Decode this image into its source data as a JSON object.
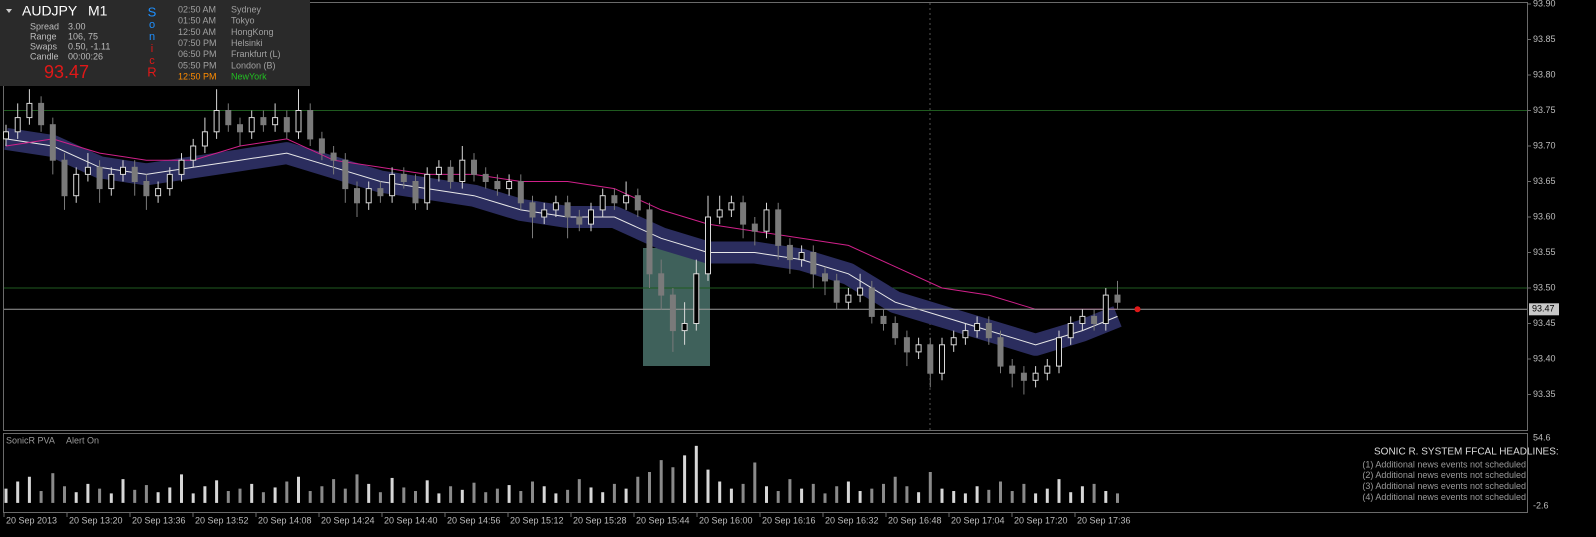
{
  "chart_data": {
    "type": "candlestick",
    "ylim": [
      93.3,
      93.9
    ],
    "yticks": [
      {
        "value": 93.9,
        "label": "93.90"
      },
      93.85,
      {
        "value": 93.8,
        "label": "93.80"
      },
      93.75,
      {
        "value": 93.7,
        "label": "93.70"
      },
      93.65,
      {
        "value": 93.6,
        "label": "93.60"
      },
      93.55,
      {
        "value": 93.5,
        "label": "93.50"
      },
      93.45,
      {
        "value": 93.4,
        "label": "93.40"
      },
      93.35
    ],
    "hlines": [
      93.75,
      93.5
    ],
    "hline_color": "#1f5a1f",
    "current_price": 93.47,
    "up_color": "#d8d8d8",
    "down_color": "#7a7a7a",
    "ohlc": [
      [
        93.71,
        93.73,
        93.7,
        93.72
      ],
      [
        93.72,
        93.76,
        93.71,
        93.74
      ],
      [
        93.74,
        93.78,
        93.73,
        93.76
      ],
      [
        93.76,
        93.77,
        93.72,
        93.73
      ],
      [
        93.73,
        93.74,
        93.66,
        93.68
      ],
      [
        93.68,
        93.69,
        93.61,
        93.63
      ],
      [
        93.63,
        93.67,
        93.62,
        93.66
      ],
      [
        93.66,
        93.69,
        93.65,
        93.67
      ],
      [
        93.67,
        93.68,
        93.62,
        93.64
      ],
      [
        93.64,
        93.67,
        93.63,
        93.66
      ],
      [
        93.66,
        93.68,
        93.65,
        93.67
      ],
      [
        93.67,
        93.68,
        93.63,
        93.65
      ],
      [
        93.65,
        93.66,
        93.61,
        93.63
      ],
      [
        93.63,
        93.65,
        93.62,
        93.64
      ],
      [
        93.64,
        93.67,
        93.63,
        93.66
      ],
      [
        93.66,
        93.69,
        93.65,
        93.68
      ],
      [
        93.68,
        93.71,
        93.67,
        93.7
      ],
      [
        93.7,
        93.74,
        93.69,
        93.72
      ],
      [
        93.72,
        93.78,
        93.71,
        93.75
      ],
      [
        93.75,
        93.76,
        93.72,
        93.73
      ],
      [
        93.73,
        93.74,
        93.7,
        93.72
      ],
      [
        93.72,
        93.75,
        93.71,
        93.74
      ],
      [
        93.74,
        93.75,
        93.72,
        93.73
      ],
      [
        93.73,
        93.76,
        93.72,
        93.74
      ],
      [
        93.74,
        93.75,
        93.71,
        93.72
      ],
      [
        93.72,
        93.78,
        93.71,
        93.75
      ],
      [
        93.75,
        93.76,
        93.7,
        93.71
      ],
      [
        93.71,
        93.72,
        93.68,
        93.69
      ],
      [
        93.69,
        93.7,
        93.66,
        93.68
      ],
      [
        93.68,
        93.69,
        93.62,
        93.64
      ],
      [
        93.64,
        93.65,
        93.6,
        93.62
      ],
      [
        93.62,
        93.65,
        93.61,
        93.64
      ],
      [
        93.64,
        93.65,
        93.62,
        93.63
      ],
      [
        93.63,
        93.67,
        93.62,
        93.66
      ],
      [
        93.66,
        93.67,
        93.64,
        93.65
      ],
      [
        93.65,
        93.66,
        93.61,
        93.62
      ],
      [
        93.62,
        93.67,
        93.61,
        93.66
      ],
      [
        93.66,
        93.68,
        93.65,
        93.67
      ],
      [
        93.67,
        93.68,
        93.64,
        93.65
      ],
      [
        93.65,
        93.7,
        93.64,
        93.68
      ],
      [
        93.68,
        93.69,
        93.65,
        93.66
      ],
      [
        93.66,
        93.67,
        93.64,
        93.65
      ],
      [
        93.65,
        93.66,
        93.63,
        93.64
      ],
      [
        93.64,
        93.66,
        93.63,
        93.65
      ],
      [
        93.65,
        93.66,
        93.61,
        93.62
      ],
      [
        93.62,
        93.63,
        93.57,
        93.6
      ],
      [
        93.6,
        93.62,
        93.59,
        93.61
      ],
      [
        93.61,
        93.63,
        93.6,
        93.62
      ],
      [
        93.62,
        93.63,
        93.57,
        93.6
      ],
      [
        93.6,
        93.61,
        93.58,
        93.59
      ],
      [
        93.59,
        93.62,
        93.58,
        93.61
      ],
      [
        93.61,
        93.64,
        93.6,
        93.63
      ],
      [
        93.63,
        93.64,
        93.61,
        93.62
      ],
      [
        93.62,
        93.65,
        93.61,
        93.63
      ],
      [
        93.63,
        93.64,
        93.6,
        93.61
      ],
      [
        93.61,
        93.62,
        93.5,
        93.52
      ],
      [
        93.52,
        93.54,
        93.47,
        93.49
      ],
      [
        93.49,
        93.5,
        93.41,
        93.44
      ],
      [
        93.44,
        93.48,
        93.42,
        93.45
      ],
      [
        93.45,
        93.54,
        93.44,
        93.52
      ],
      [
        93.52,
        93.63,
        93.51,
        93.6
      ],
      [
        93.6,
        93.63,
        93.59,
        93.61
      ],
      [
        93.61,
        93.63,
        93.6,
        93.62
      ],
      [
        93.62,
        93.63,
        93.57,
        93.59
      ],
      [
        93.59,
        93.6,
        93.56,
        93.58
      ],
      [
        93.58,
        93.62,
        93.57,
        93.61
      ],
      [
        93.61,
        93.62,
        93.54,
        93.56
      ],
      [
        93.56,
        93.57,
        93.52,
        93.54
      ],
      [
        93.54,
        93.56,
        93.53,
        93.55
      ],
      [
        93.55,
        93.56,
        93.5,
        93.52
      ],
      [
        93.52,
        93.53,
        93.49,
        93.51
      ],
      [
        93.51,
        93.52,
        93.47,
        93.48
      ],
      [
        93.48,
        93.5,
        93.47,
        93.49
      ],
      [
        93.49,
        93.52,
        93.48,
        93.5
      ],
      [
        93.5,
        93.51,
        93.45,
        93.46
      ],
      [
        93.46,
        93.47,
        93.44,
        93.45
      ],
      [
        93.45,
        93.46,
        93.42,
        93.43
      ],
      [
        93.43,
        93.44,
        93.39,
        93.41
      ],
      [
        93.41,
        93.43,
        93.4,
        93.42
      ],
      [
        93.42,
        93.43,
        93.36,
        93.38
      ],
      [
        93.38,
        93.43,
        93.37,
        93.42
      ],
      [
        93.42,
        93.44,
        93.41,
        93.43
      ],
      [
        93.43,
        93.45,
        93.42,
        93.44
      ],
      [
        93.44,
        93.46,
        93.43,
        93.45
      ],
      [
        93.45,
        93.46,
        93.42,
        93.43
      ],
      [
        93.43,
        93.44,
        93.38,
        93.39
      ],
      [
        93.39,
        93.4,
        93.36,
        93.38
      ],
      [
        93.38,
        93.39,
        93.35,
        93.37
      ],
      [
        93.37,
        93.39,
        93.36,
        93.38
      ],
      [
        93.38,
        93.4,
        93.37,
        93.39
      ],
      [
        93.39,
        93.44,
        93.38,
        93.43
      ],
      [
        93.43,
        93.46,
        93.42,
        93.45
      ],
      [
        93.45,
        93.47,
        93.44,
        93.46
      ],
      [
        93.46,
        93.47,
        93.44,
        93.45
      ],
      [
        93.45,
        93.5,
        93.44,
        93.49
      ],
      [
        93.49,
        93.51,
        93.47,
        93.48
      ]
    ],
    "indicator_x": [
      0,
      4,
      8,
      12,
      16,
      20,
      24,
      28,
      32,
      36,
      40,
      44,
      48,
      52,
      56,
      60,
      64,
      68,
      72,
      76,
      80,
      84,
      88,
      92,
      95
    ],
    "ema": {
      "color": "#e8e8e8",
      "band_color": "#2b2d5e",
      "values": [
        93.71,
        93.7,
        93.67,
        93.66,
        93.67,
        93.68,
        93.69,
        93.67,
        93.65,
        93.64,
        93.63,
        93.61,
        93.6,
        93.6,
        93.57,
        93.55,
        93.55,
        93.54,
        93.52,
        93.48,
        93.46,
        93.44,
        93.42,
        93.44,
        93.46
      ]
    },
    "ma": {
      "color": "#d0208a",
      "values": [
        93.7,
        93.71,
        93.69,
        93.68,
        93.68,
        93.7,
        93.71,
        93.68,
        93.67,
        93.66,
        93.66,
        93.65,
        93.65,
        93.64,
        93.61,
        93.59,
        93.58,
        93.57,
        93.56,
        93.53,
        93.5,
        93.49,
        93.47,
        93.47,
        93.47
      ]
    },
    "volume": {
      "ylim": [
        -2.6,
        54.6
      ],
      "yticks": [
        54.6,
        -2.6
      ],
      "color": "#8a8a8a",
      "values": [
        12,
        18,
        22,
        10,
        25,
        14,
        9,
        16,
        12,
        8,
        20,
        11,
        15,
        9,
        13,
        24,
        8,
        14,
        19,
        10,
        12,
        16,
        9,
        13,
        18,
        22,
        10,
        14,
        20,
        12,
        24,
        16,
        9,
        21,
        13,
        10,
        19,
        8,
        14,
        11,
        17,
        9,
        12,
        15,
        10,
        18,
        14,
        8,
        11,
        20,
        13,
        9,
        16,
        12,
        22,
        26,
        36,
        30,
        40,
        48,
        28,
        18,
        12,
        16,
        34,
        14,
        10,
        20,
        12,
        16,
        8,
        14,
        18,
        10,
        12,
        16,
        22,
        14,
        9,
        26,
        12,
        10,
        8,
        14,
        11,
        18,
        10,
        16,
        8,
        12,
        20,
        9,
        14,
        16,
        10,
        8
      ]
    },
    "time_labels": [
      "20 Sep 2013",
      "20 Sep 13:20",
      "20 Sep 13:36",
      "20 Sep 13:52",
      "20 Sep 14:08",
      "20 Sep 14:24",
      "20 Sep 14:40",
      "20 Sep 14:56",
      "20 Sep 15:12",
      "20 Sep 15:28",
      "20 Sep 15:44",
      "20 Sep 16:00",
      "20 Sep 16:16",
      "20 Sep 16:32",
      "20 Sep 16:48",
      "20 Sep 17:04",
      "20 Sep 17:20",
      "20 Sep 17:36"
    ]
  },
  "info_panel": {
    "symbol": "AUDJPY",
    "timeframe": "M1",
    "rows": [
      [
        "Spread",
        "3.00"
      ],
      [
        "Range",
        "106, 75"
      ],
      [
        "Swaps",
        "0.50, -1.11"
      ],
      [
        "Candle",
        "00:00:26"
      ]
    ],
    "bid": "93.47",
    "letters": [
      "S",
      "o",
      "n",
      "i",
      "c",
      "R"
    ]
  },
  "sessions": [
    [
      "02:50 AM",
      "Sydney"
    ],
    [
      "01:50 AM",
      "Tokyo"
    ],
    [
      "12:50 AM",
      "HongKong"
    ],
    [
      "07:50 PM",
      "Helsinki"
    ],
    [
      "06:50 PM",
      "Frankfurt  (L)"
    ],
    [
      "05:50 PM",
      "London  (B)"
    ],
    [
      "12:50 PM",
      "NewYork"
    ]
  ],
  "volume_panel": {
    "name": "SonicR PVA",
    "alert": "Alert On"
  },
  "news": {
    "title": "SONIC R. SYSTEM  FFCAL HEADLINES:",
    "lines": [
      "(1)  Additional news events not scheduled",
      "(2)  Additional news events not scheduled",
      "(3)  Additional news events not scheduled",
      "(4)  Additional news events not scheduled"
    ]
  }
}
